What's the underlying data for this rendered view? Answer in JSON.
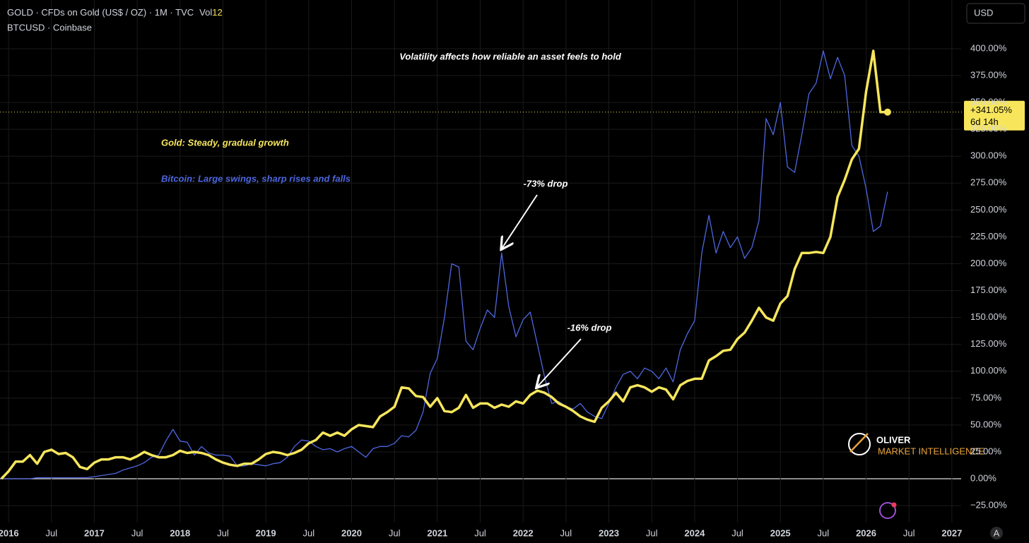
{
  "header": {
    "symbol": "GOLD · CFDs on Gold (US$ / OZ) · 1M · TVC",
    "vol_label": "Vol",
    "vol_value": "12",
    "compare_symbol": "BTCUSD · Coinbase",
    "currency_button": "USD",
    "auto_button": "A"
  },
  "logo": {
    "name": "OLIVER",
    "tagline": "MARKET INTELLIGENCE"
  },
  "chart_data": {
    "type": "line",
    "title": "Volatility affects how reliable an asset feels to hold",
    "annotations": {
      "gold": "Gold: Steady, gradual growth",
      "bitcoin": "Bitcoin: Large swings, sharp rises and falls",
      "btc_drop": "-73% drop",
      "gold_drop": "-16% drop"
    },
    "last_value": {
      "value": 341.05,
      "label": "+341.05%",
      "countdown": "6d 14h"
    },
    "x": [
      "2015-12",
      "2016-01",
      "2016-02",
      "2016-03",
      "2016-04",
      "2016-05",
      "2016-06",
      "2016-07",
      "2016-08",
      "2016-09",
      "2016-10",
      "2016-11",
      "2016-12",
      "2017-01",
      "2017-02",
      "2017-03",
      "2017-04",
      "2017-05",
      "2017-06",
      "2017-07",
      "2017-08",
      "2017-09",
      "2017-10",
      "2017-11",
      "2017-12",
      "2018-01",
      "2018-02",
      "2018-03",
      "2018-04",
      "2018-05",
      "2018-06",
      "2018-07",
      "2018-08",
      "2018-09",
      "2018-10",
      "2018-11",
      "2018-12",
      "2019-01",
      "2019-02",
      "2019-03",
      "2019-04",
      "2019-05",
      "2019-06",
      "2019-07",
      "2019-08",
      "2019-09",
      "2019-10",
      "2019-11",
      "2019-12",
      "2020-01",
      "2020-02",
      "2020-03",
      "2020-04",
      "2020-05",
      "2020-06",
      "2020-07",
      "2020-08",
      "2020-09",
      "2020-10",
      "2020-11",
      "2020-12",
      "2021-01",
      "2021-02",
      "2021-03",
      "2021-04",
      "2021-05",
      "2021-06",
      "2021-07",
      "2021-08",
      "2021-09",
      "2021-10",
      "2021-11",
      "2021-12",
      "2022-01",
      "2022-02",
      "2022-03",
      "2022-04",
      "2022-05",
      "2022-06",
      "2022-07",
      "2022-08",
      "2022-09",
      "2022-10",
      "2022-11",
      "2022-12",
      "2023-01",
      "2023-02",
      "2023-03",
      "2023-04",
      "2023-05",
      "2023-06",
      "2023-07",
      "2023-08",
      "2023-09",
      "2023-10",
      "2023-11",
      "2023-12",
      "2024-01",
      "2024-02",
      "2024-03",
      "2024-04",
      "2024-05",
      "2024-06",
      "2024-07",
      "2024-08",
      "2024-09",
      "2024-10",
      "2024-11",
      "2024-12",
      "2025-01",
      "2025-02",
      "2025-03",
      "2025-04",
      "2025-05",
      "2025-06",
      "2025-07",
      "2025-08",
      "2025-09",
      "2025-10",
      "2025-11",
      "2025-12",
      "2026-01",
      "2026-02",
      "2026-03",
      "2026-04"
    ],
    "series": [
      {
        "name": "BTCUSD",
        "color": "#4e67e0",
        "width": 1.3,
        "values": [
          0,
          0,
          0,
          0,
          0,
          1,
          1,
          1,
          1,
          1,
          1,
          1,
          1,
          2,
          3,
          4,
          5,
          8,
          10,
          12,
          15,
          20,
          22,
          35,
          46,
          35,
          34,
          22,
          30,
          24,
          22,
          22,
          21,
          12,
          12,
          14,
          13,
          12,
          14,
          15,
          20,
          30,
          36,
          35,
          30,
          27,
          28,
          25,
          28,
          30,
          25,
          20,
          28,
          30,
          30,
          33,
          40,
          39,
          45,
          62,
          98,
          112,
          150,
          200,
          197,
          128,
          120,
          140,
          157,
          150,
          210,
          160,
          132,
          148,
          155,
          125,
          95,
          70,
          72,
          67,
          65,
          70,
          62,
          58,
          56,
          70,
          85,
          97,
          100,
          93,
          103,
          100,
          93,
          103,
          90,
          120,
          135,
          147,
          210,
          245,
          210,
          230,
          215,
          225,
          205,
          215,
          240,
          335,
          320,
          350,
          290,
          285,
          320,
          358,
          368,
          398,
          372,
          392,
          375,
          310,
          300,
          270,
          230,
          235,
          267
        ]
      },
      {
        "name": "GOLD",
        "color": "#f7e65c",
        "width": 3.5,
        "values": [
          0,
          7,
          16,
          16,
          22,
          14,
          25,
          27,
          23,
          24,
          20,
          11,
          9,
          15,
          18,
          18,
          20,
          20,
          18,
          21,
          25,
          22,
          20,
          20,
          22,
          26,
          24,
          25,
          24,
          22,
          18,
          15,
          13,
          12,
          14,
          14,
          18,
          23,
          25,
          24,
          22,
          24,
          27,
          33,
          36,
          43,
          40,
          43,
          40,
          46,
          50,
          49,
          48,
          58,
          62,
          67,
          85,
          84,
          77,
          76,
          67,
          75,
          63,
          62,
          66,
          78,
          66,
          70,
          70,
          66,
          69,
          67,
          72,
          70,
          78,
          82,
          80,
          76,
          70,
          67,
          63,
          58,
          55,
          53,
          66,
          72,
          80,
          72,
          85,
          87,
          85,
          81,
          85,
          83,
          74,
          87,
          91,
          93,
          93,
          110,
          114,
          119,
          120,
          130,
          136,
          147,
          159,
          150,
          147,
          163,
          170,
          195,
          210,
          210,
          211,
          210,
          225,
          262,
          278,
          297,
          307,
          360,
          398,
          341,
          341.05
        ]
      }
    ],
    "xlim": [
      "2015-12",
      "2027-02"
    ],
    "xticks": [
      {
        "value": "2016-01",
        "label": "2016"
      },
      {
        "value": "2016-07",
        "label": "Jul"
      },
      {
        "value": "2017-01",
        "label": "2017"
      },
      {
        "value": "2017-07",
        "label": "Jul"
      },
      {
        "value": "2018-01",
        "label": "2018"
      },
      {
        "value": "2018-07",
        "label": "Jul"
      },
      {
        "value": "2019-01",
        "label": "2019"
      },
      {
        "value": "2019-07",
        "label": "Jul"
      },
      {
        "value": "2020-01",
        "label": "2020"
      },
      {
        "value": "2020-07",
        "label": "Jul"
      },
      {
        "value": "2021-01",
        "label": "2021"
      },
      {
        "value": "2021-07",
        "label": "Jul"
      },
      {
        "value": "2022-01",
        "label": "2022"
      },
      {
        "value": "2022-07",
        "label": "Jul"
      },
      {
        "value": "2023-01",
        "label": "2023"
      },
      {
        "value": "2023-07",
        "label": "Jul"
      },
      {
        "value": "2024-01",
        "label": "2024"
      },
      {
        "value": "2024-07",
        "label": "Jul"
      },
      {
        "value": "2025-01",
        "label": "2025"
      },
      {
        "value": "2025-07",
        "label": "Jul"
      },
      {
        "value": "2026-01",
        "label": "2026"
      },
      {
        "value": "2026-07",
        "label": "Jul"
      },
      {
        "value": "2027-01",
        "label": "2027"
      }
    ],
    "ylim": [
      -40.7,
      445.3
    ],
    "yticks": [
      {
        "value": -25,
        "label": "−25.00%"
      },
      {
        "value": 0,
        "label": "0.00%"
      },
      {
        "value": 25,
        "label": "25.00%"
      },
      {
        "value": 50,
        "label": "50.00%"
      },
      {
        "value": 75,
        "label": "75.00%"
      },
      {
        "value": 100,
        "label": "100.00%"
      },
      {
        "value": 125,
        "label": "125.00%"
      },
      {
        "value": 150,
        "label": "150.00%"
      },
      {
        "value": 175,
        "label": "175.00%"
      },
      {
        "value": 200,
        "label": "200.00%"
      },
      {
        "value": 225,
        "label": "225.00%"
      },
      {
        "value": 250,
        "label": "250.00%"
      },
      {
        "value": 275,
        "label": "275.00%"
      },
      {
        "value": 300,
        "label": "300.00%"
      },
      {
        "value": 325,
        "label": "325.00%"
      },
      {
        "value": 350,
        "label": "350.00%"
      },
      {
        "value": 375,
        "label": "375.00%"
      },
      {
        "value": 400,
        "label": "400.00%"
      }
    ],
    "grid": true
  }
}
